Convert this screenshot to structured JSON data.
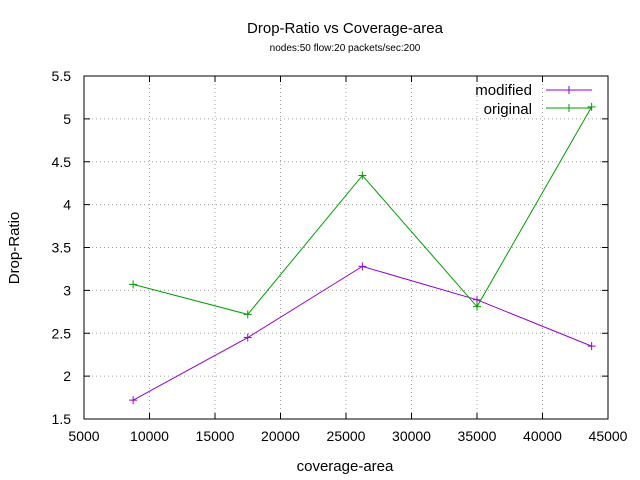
{
  "chart_data": {
    "type": "line",
    "title": "Drop-Ratio vs Coverage-area",
    "subtitle": "nodes:50  flow:20  packets/sec:200",
    "xlabel": "coverage-area",
    "ylabel": "Drop-Ratio",
    "xlim": [
      5000,
      45000
    ],
    "ylim": [
      1.5,
      5.5
    ],
    "xticks": [
      5000,
      10000,
      15000,
      20000,
      25000,
      30000,
      35000,
      40000,
      45000
    ],
    "yticks": [
      1.5,
      2,
      2.5,
      3,
      3.5,
      4,
      4.5,
      5,
      5.5
    ],
    "xtick_labels": [
      "5000",
      "10000",
      "15000",
      "20000",
      "25000",
      "30000",
      "35000",
      "40000",
      "45000"
    ],
    "ytick_labels": [
      "1.5",
      "2",
      "2.5",
      "3",
      "3.5",
      "4",
      "4.5",
      "5",
      "5.5"
    ],
    "grid": true,
    "legend_position": "top-right",
    "x": [
      8750,
      17500,
      26250,
      35000,
      43750
    ],
    "series": [
      {
        "name": "modified",
        "color": "#9400d3",
        "values": [
          1.72,
          2.45,
          3.28,
          2.89,
          2.35
        ]
      },
      {
        "name": "original",
        "color": "#009e00",
        "values": [
          3.07,
          2.72,
          4.34,
          2.81,
          5.14
        ]
      }
    ]
  }
}
